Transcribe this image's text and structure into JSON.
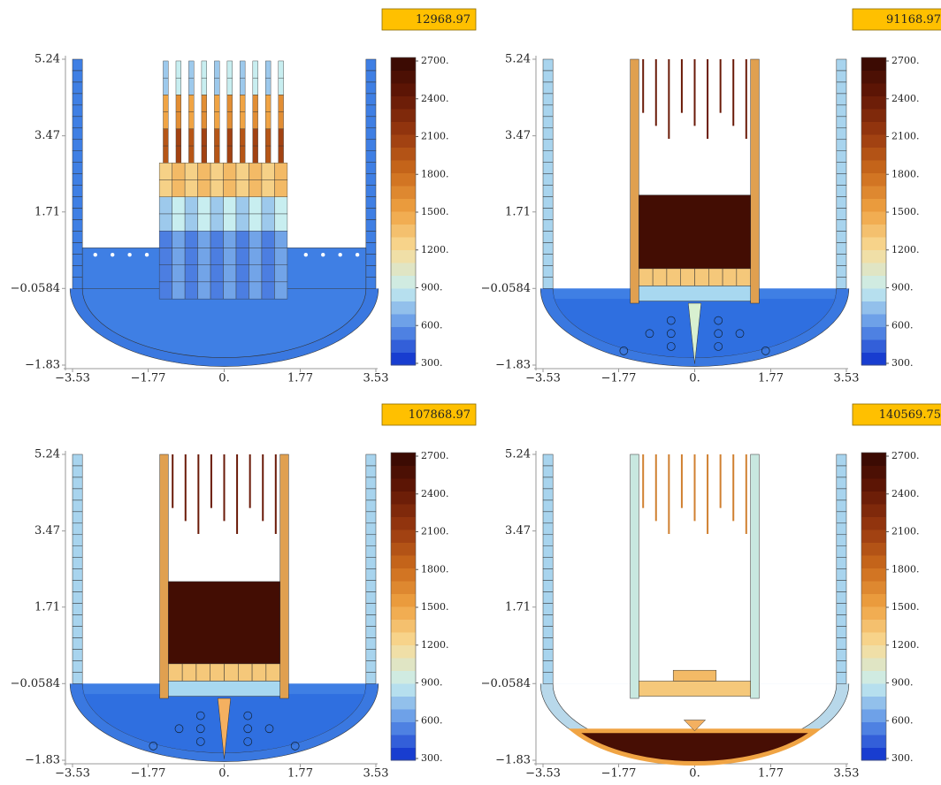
{
  "chart_data": [
    {
      "type": "heatmap",
      "time": 12968.97,
      "xlim": [
        -3.53,
        3.53
      ],
      "ylim": [
        -1.83,
        5.24
      ],
      "xticks": [
        {
          "value": -3.53,
          "label": "−3.53"
        },
        {
          "value": -1.77,
          "label": "−1.77"
        },
        {
          "value": 0,
          "label": "0."
        },
        1.77,
        3.53
      ],
      "yticks": [
        5.24,
        3.47,
        1.71,
        {
          "value": -0.0584,
          "label": "−0.0584"
        },
        {
          "value": -1.83,
          "label": "−1.83"
        }
      ],
      "zlim": [
        300,
        2700
      ],
      "zticks": [
        {
          "value": 300,
          "label": "300."
        },
        {
          "value": 600,
          "label": "600."
        },
        {
          "value": 900,
          "label": "900."
        },
        {
          "value": 1200,
          "label": "1200."
        },
        {
          "value": 1500,
          "label": "1500."
        },
        {
          "value": 1800,
          "label": "1800."
        },
        {
          "value": 2100,
          "label": "2100."
        },
        {
          "value": 2400,
          "label": "2400."
        },
        {
          "value": 2700,
          "label": "2700."
        }
      ]
    },
    {
      "type": "heatmap",
      "time": 91168.97,
      "xlim": [
        -3.53,
        3.53
      ],
      "ylim": [
        -1.83,
        5.24
      ],
      "xticks": [
        {
          "value": -3.53,
          "label": "−3.53"
        },
        {
          "value": -1.77,
          "label": "−1.77"
        },
        {
          "value": 0,
          "label": "0."
        },
        1.77,
        3.53
      ],
      "yticks": [
        5.24,
        3.47,
        1.71,
        {
          "value": -0.0584,
          "label": "−0.0584"
        },
        {
          "value": -1.83,
          "label": "−1.83"
        }
      ],
      "zlim": [
        300,
        2700
      ],
      "zticks": [
        {
          "value": 300,
          "label": "300."
        },
        {
          "value": 600,
          "label": "600."
        },
        {
          "value": 900,
          "label": "900."
        },
        {
          "value": 1200,
          "label": "1200."
        },
        {
          "value": 1500,
          "label": "1500."
        },
        {
          "value": 1800,
          "label": "1800."
        },
        {
          "value": 2100,
          "label": "2100."
        },
        {
          "value": 2400,
          "label": "2400."
        },
        {
          "value": 2700,
          "label": "2700."
        }
      ]
    },
    {
      "type": "heatmap",
      "time": 107868.97,
      "xlim": [
        -3.53,
        3.53
      ],
      "ylim": [
        -1.83,
        5.24
      ],
      "xticks": [
        {
          "value": -3.53,
          "label": "−3.53"
        },
        {
          "value": -1.77,
          "label": "−1.77"
        },
        {
          "value": 0,
          "label": "0."
        },
        1.77,
        3.53
      ],
      "yticks": [
        5.24,
        3.47,
        1.71,
        {
          "value": -0.0584,
          "label": "−0.0584"
        },
        {
          "value": -1.83,
          "label": "−1.83"
        }
      ],
      "zlim": [
        300,
        2700
      ],
      "zticks": [
        {
          "value": 300,
          "label": "300."
        },
        {
          "value": 600,
          "label": "600."
        },
        {
          "value": 900,
          "label": "900."
        },
        {
          "value": 1200,
          "label": "1200."
        },
        {
          "value": 1500,
          "label": "1500."
        },
        {
          "value": 1800,
          "label": "1800."
        },
        {
          "value": 2100,
          "label": "2100."
        },
        {
          "value": 2400,
          "label": "2400."
        },
        {
          "value": 2700,
          "label": "2700."
        }
      ]
    },
    {
      "type": "heatmap",
      "time": 140569.75,
      "xlim": [
        -3.53,
        3.53
      ],
      "ylim": [
        -1.83,
        5.24
      ],
      "xticks": [
        {
          "value": -3.53,
          "label": "−3.53"
        },
        {
          "value": -1.77,
          "label": "−1.77"
        },
        {
          "value": 0,
          "label": "0."
        },
        1.77,
        3.53
      ],
      "yticks": [
        5.24,
        3.47,
        1.71,
        {
          "value": -0.0584,
          "label": "−0.0584"
        },
        {
          "value": -1.83,
          "label": "−1.83"
        }
      ],
      "zlim": [
        300,
        2700
      ],
      "zticks": [
        {
          "value": 300,
          "label": "300."
        },
        {
          "value": 600,
          "label": "600."
        },
        {
          "value": 900,
          "label": "900."
        },
        {
          "value": 1200,
          "label": "1200."
        },
        {
          "value": 1500,
          "label": "1500."
        },
        {
          "value": 1800,
          "label": "1800."
        },
        {
          "value": 2100,
          "label": "2100."
        },
        {
          "value": 2400,
          "label": "2400."
        },
        {
          "value": 2700,
          "label": "2700."
        }
      ]
    }
  ]
}
